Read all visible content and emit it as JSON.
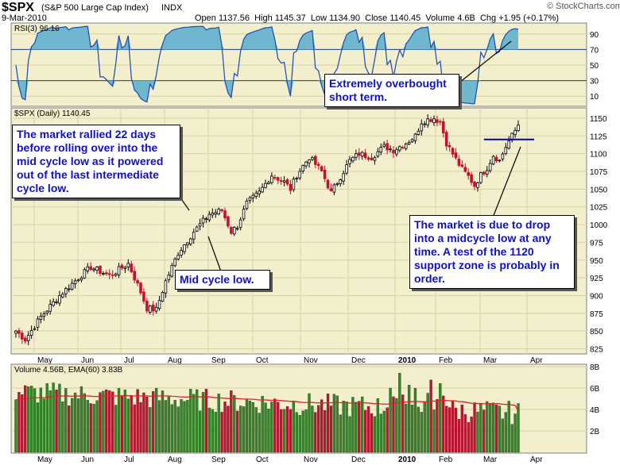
{
  "header": {
    "symbol": "$SPX",
    "name": "(S&P 500 Large Cap Index)",
    "exchange": "INDX",
    "date": "9-Mar-2010",
    "open_label": "Open",
    "open": "1137.56",
    "high_label": "High",
    "high": "1145.37",
    "low_label": "Low",
    "low": "1134.90",
    "close_label": "Close",
    "close": "1140.45",
    "volume_label": "Volume",
    "volume": "4.6B",
    "chg_label": "Chg",
    "chg": "+1.95 (+0.17%)",
    "credit": "© StockCharts.com"
  },
  "panels": {
    "rsi_label": "RSI(3) 96.16",
    "price_label": "$SPX (Daily) 1140.45",
    "volume_label": "Volume 4.56B, EMA(60) 3.83B"
  },
  "annotations": {
    "overbought": "Extremely overbought short term.",
    "rally": "The market rallied 22 days before rolling over into the mid cycle low as it powered out of the last intermediate cycle low.",
    "midcycle": "Mid cycle low.",
    "drop": "The market is due to drop into a midcycle low at any time. A test of the 1120 support zone is probably in order."
  },
  "colors": {
    "up": "#2e8b22",
    "down": "#c8102e",
    "rsi_fill": "#6fb7cf",
    "ema": "#e82020",
    "support": "#0000cc",
    "panel_bg": "#f3eecb"
  },
  "chart_data": [
    {
      "type": "line",
      "name": "RSI(3)",
      "ylim": [
        0,
        100
      ],
      "ytick_labels": [
        "10",
        "30",
        "50",
        "70",
        "90"
      ],
      "ref_lines": [
        30,
        70
      ],
      "value": 96.16
    },
    {
      "type": "candlestick",
      "name": "$SPX (Daily)",
      "ylim": [
        820,
        1160
      ],
      "ytick_labels": [
        "825",
        "850",
        "875",
        "900",
        "925",
        "950",
        "975",
        "1000",
        "1025",
        "1050",
        "1075",
        "1100",
        "1125",
        "1150"
      ],
      "x_labels": [
        "May",
        "Jun",
        "Jul",
        "Aug",
        "Sep",
        "Oct",
        "Nov",
        "Dec",
        "2010",
        "Feb",
        "Mar",
        "Apr"
      ],
      "anchors": [
        [
          0,
          850
        ],
        [
          3,
          838
        ],
        [
          8,
          870
        ],
        [
          14,
          900
        ],
        [
          20,
          925
        ],
        [
          24,
          940
        ],
        [
          30,
          928
        ],
        [
          36,
          945
        ],
        [
          40,
          905
        ],
        [
          42,
          882
        ],
        [
          45,
          880
        ],
        [
          48,
          920
        ],
        [
          52,
          960
        ],
        [
          57,
          990
        ],
        [
          62,
          1015
        ],
        [
          66,
          1020
        ],
        [
          69,
          990
        ],
        [
          71,
          998
        ],
        [
          74,
          1030
        ],
        [
          78,
          1045
        ],
        [
          82,
          1070
        ],
        [
          86,
          1060
        ],
        [
          88,
          1050
        ],
        [
          90,
          1070
        ],
        [
          94,
          1095
        ],
        [
          98,
          1075
        ],
        [
          101,
          1045
        ],
        [
          103,
          1060
        ],
        [
          107,
          1090
        ],
        [
          110,
          1100
        ],
        [
          114,
          1095
        ],
        [
          118,
          1110
        ],
        [
          121,
          1105
        ],
        [
          125,
          1115
        ],
        [
          128,
          1125
        ],
        [
          130,
          1145
        ],
        [
          132,
          1148
        ],
        [
          134,
          1150
        ],
        [
          136,
          1145
        ],
        [
          138,
          1115
        ],
        [
          141,
          1092
        ],
        [
          143,
          1078
        ],
        [
          145,
          1068
        ],
        [
          147,
          1055
        ],
        [
          149,
          1070
        ],
        [
          151,
          1080
        ],
        [
          153,
          1098
        ],
        [
          155,
          1090
        ],
        [
          157,
          1110
        ],
        [
          159,
          1125
        ],
        [
          161,
          1140
        ]
      ],
      "support_level": 1120,
      "last_close": 1140.45
    },
    {
      "type": "bar",
      "name": "Volume",
      "ema_name": "EMA(60)",
      "ylim": [
        0,
        8
      ],
      "ytick_labels": [
        "2B",
        "4B",
        "6B",
        "8B"
      ],
      "last_volume": 4.56,
      "ema_last": 3.83
    }
  ]
}
